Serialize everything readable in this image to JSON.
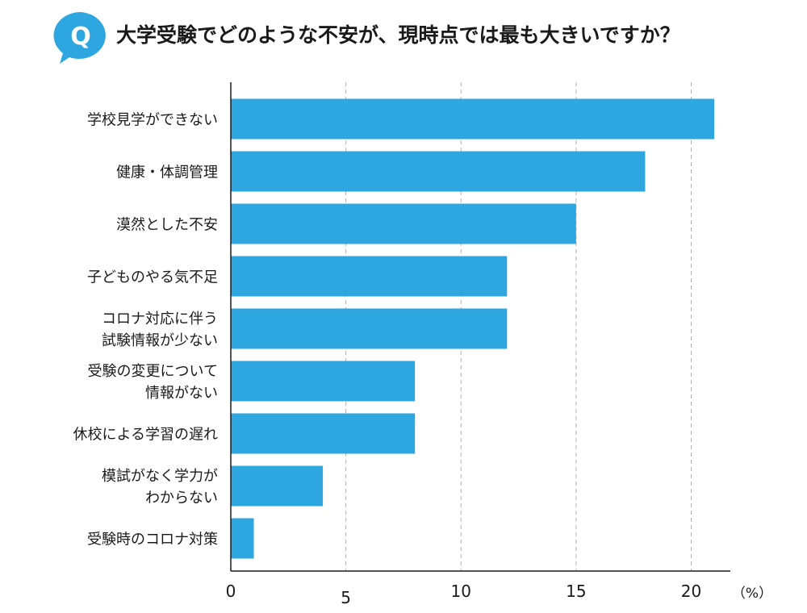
{
  "header": {
    "q_letter": "Q",
    "question": "大学受験でどのような不安が、現時点では最も大きいですか？"
  },
  "colors": {
    "bar": "#2ea7e0",
    "badge": "#2ea7e0",
    "grid": "#b0b0b0",
    "axis": "#1a1a1a"
  },
  "chart_data": {
    "type": "bar",
    "orientation": "horizontal",
    "categories": [
      [
        "学校見学ができない"
      ],
      [
        "健康・体調管理"
      ],
      [
        "漠然とした不安"
      ],
      [
        "子どものやる気不足"
      ],
      [
        "コロナ対応に伴う",
        "試験情報が少ない"
      ],
      [
        "受験の変更について",
        "情報がない"
      ],
      [
        "休校による学習の遅れ"
      ],
      [
        "模試がなく学力が",
        "わからない"
      ],
      [
        "受験時のコロナ対策"
      ]
    ],
    "values": [
      21,
      18,
      15,
      12,
      12,
      8,
      8,
      4,
      1
    ],
    "xlim": [
      0,
      21.7
    ],
    "xticks": [
      0,
      5,
      10,
      15,
      20
    ],
    "xunit": "（%）",
    "grid": "vertical-dashed",
    "legend": "none"
  }
}
